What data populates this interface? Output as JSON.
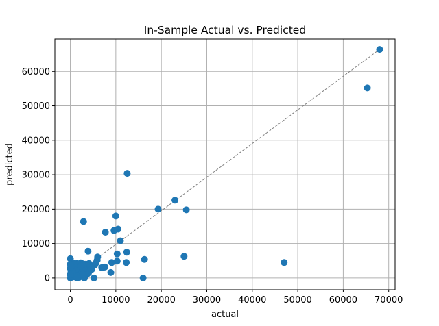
{
  "chart_data": {
    "type": "scatter",
    "title": "In-Sample Actual vs. Predicted",
    "xlabel": "actual",
    "ylabel": "predicted",
    "xlim": [
      -3400,
      71400
    ],
    "ylim": [
      -3400,
      69400
    ],
    "xticks": [
      0,
      10000,
      20000,
      30000,
      40000,
      50000,
      60000,
      70000
    ],
    "xtick_labels": [
      "0",
      "10000",
      "20000",
      "30000",
      "40000",
      "50000",
      "60000",
      "70000"
    ],
    "yticks": [
      0,
      10000,
      20000,
      30000,
      40000,
      50000,
      60000
    ],
    "ytick_labels": [
      "0",
      "10000",
      "20000",
      "30000",
      "40000",
      "50000",
      "60000"
    ],
    "grid": true,
    "reference_line": {
      "style": "dashed",
      "color": "#808080",
      "from": [
        0,
        0
      ],
      "to": [
        68000,
        66400
      ]
    },
    "marker_color": "#1f77b4",
    "points": [
      {
        "x": 68000,
        "y": 66400
      },
      {
        "x": 65300,
        "y": 55200
      },
      {
        "x": 47000,
        "y": 4500
      },
      {
        "x": 25500,
        "y": 19800
      },
      {
        "x": 25000,
        "y": 6300
      },
      {
        "x": 23000,
        "y": 22600
      },
      {
        "x": 19300,
        "y": 20000
      },
      {
        "x": 16300,
        "y": 5400
      },
      {
        "x": 16000,
        "y": 0
      },
      {
        "x": 12500,
        "y": 30400
      },
      {
        "x": 12400,
        "y": 7500
      },
      {
        "x": 12300,
        "y": 4500
      },
      {
        "x": 11000,
        "y": 10800
      },
      {
        "x": 10500,
        "y": 14200
      },
      {
        "x": 10300,
        "y": 7000
      },
      {
        "x": 10300,
        "y": 4900
      },
      {
        "x": 10000,
        "y": 18000
      },
      {
        "x": 9600,
        "y": 13800
      },
      {
        "x": 9100,
        "y": 4500
      },
      {
        "x": 8900,
        "y": 1600
      },
      {
        "x": 7700,
        "y": 13300
      },
      {
        "x": 7600,
        "y": 3200
      },
      {
        "x": 7200,
        "y": 3100
      },
      {
        "x": 6900,
        "y": 3000
      },
      {
        "x": 6000,
        "y": 6100
      },
      {
        "x": 5900,
        "y": 5200
      },
      {
        "x": 5600,
        "y": 4300
      },
      {
        "x": 5400,
        "y": 3800
      },
      {
        "x": 5200,
        "y": 0
      },
      {
        "x": 3900,
        "y": 7800
      },
      {
        "x": 3100,
        "y": 0
      },
      {
        "x": 2900,
        "y": 16400
      },
      {
        "x": 0,
        "y": 5600
      },
      {
        "x": 0,
        "y": 0
      },
      {
        "x": 200,
        "y": 500
      },
      {
        "x": 100,
        "y": 1500
      },
      {
        "x": 0,
        "y": 2800
      },
      {
        "x": 400,
        "y": 3800
      },
      {
        "x": 600,
        "y": 1000
      },
      {
        "x": 800,
        "y": 2200
      },
      {
        "x": 900,
        "y": 300
      },
      {
        "x": 1100,
        "y": 3400
      },
      {
        "x": 1200,
        "y": 1600
      },
      {
        "x": 1400,
        "y": 4200
      },
      {
        "x": 1500,
        "y": 600
      },
      {
        "x": 1600,
        "y": 2800
      },
      {
        "x": 1800,
        "y": 1200
      },
      {
        "x": 1900,
        "y": 3700
      },
      {
        "x": 2000,
        "y": 200
      },
      {
        "x": 2100,
        "y": 2000
      },
      {
        "x": 2300,
        "y": 4400
      },
      {
        "x": 2400,
        "y": 900
      },
      {
        "x": 2500,
        "y": 3100
      },
      {
        "x": 2600,
        "y": 1700
      },
      {
        "x": 2800,
        "y": 4100
      },
      {
        "x": 2900,
        "y": 2400
      },
      {
        "x": 3000,
        "y": 500
      },
      {
        "x": 3200,
        "y": 3500
      },
      {
        "x": 3300,
        "y": 1400
      },
      {
        "x": 3400,
        "y": 4000
      },
      {
        "x": 3500,
        "y": 2700
      },
      {
        "x": 3600,
        "y": 1000
      },
      {
        "x": 3700,
        "y": 3900
      },
      {
        "x": 3800,
        "y": 2000
      },
      {
        "x": 3900,
        "y": 3300
      },
      {
        "x": 4000,
        "y": 1500
      },
      {
        "x": 4100,
        "y": 4200
      },
      {
        "x": 4200,
        "y": 2600
      },
      {
        "x": 4300,
        "y": 3600
      },
      {
        "x": 4400,
        "y": 2200
      },
      {
        "x": 4500,
        "y": 3000
      },
      {
        "x": 4700,
        "y": 2500
      },
      {
        "x": 300,
        "y": 2400
      },
      {
        "x": 700,
        "y": 4300
      },
      {
        "x": 1000,
        "y": 800
      },
      {
        "x": 1300,
        "y": 2600
      },
      {
        "x": 1700,
        "y": 4000
      },
      {
        "x": 2200,
        "y": 3400
      },
      {
        "x": 2700,
        "y": 1100
      },
      {
        "x": 500,
        "y": 1800
      },
      {
        "x": 0,
        "y": 1000
      },
      {
        "x": 0,
        "y": 4000
      },
      {
        "x": 100,
        "y": 3200
      },
      {
        "x": 1500,
        "y": 0
      }
    ]
  }
}
